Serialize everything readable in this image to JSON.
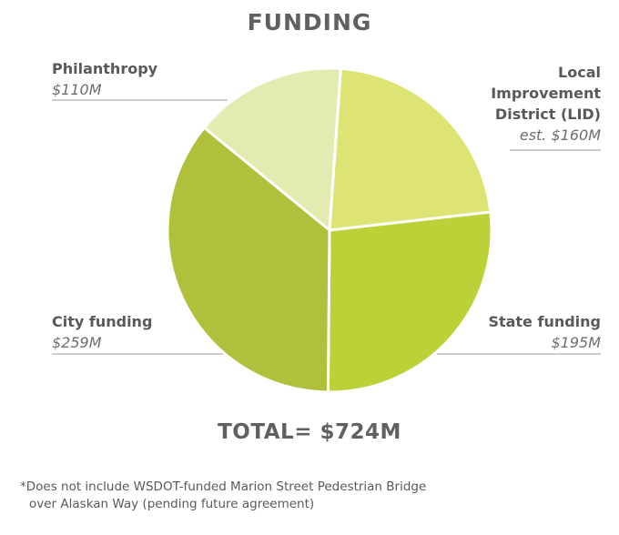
{
  "title": "FUNDING",
  "total": "TOTAL= $724M",
  "footnote": {
    "line1": "*Does not include WSDOT-funded Marion Street Pedestrian Bridge",
    "line2": "over Alaskan Way (pending future agreement)"
  },
  "colors": {
    "Philanthropy": "#e3ebb1",
    "Local Improvement District (LID)": "#dde474",
    "State funding": "#bcd038",
    "City funding": "#b1c03c"
  },
  "chart_data": {
    "type": "pie",
    "title": "FUNDING",
    "total_label": "TOTAL= $724M",
    "slices": [
      {
        "label": "Philanthropy",
        "value_label": "$110M",
        "value": 110
      },
      {
        "label": "Local\nImprovement\nDistrict (LID)",
        "value_label": "est. $160M",
        "value": 160
      },
      {
        "label": "State funding",
        "value_label": "$195M",
        "value": 195
      },
      {
        "label": "City funding",
        "value_label": "$259M",
        "value": 259
      }
    ]
  }
}
